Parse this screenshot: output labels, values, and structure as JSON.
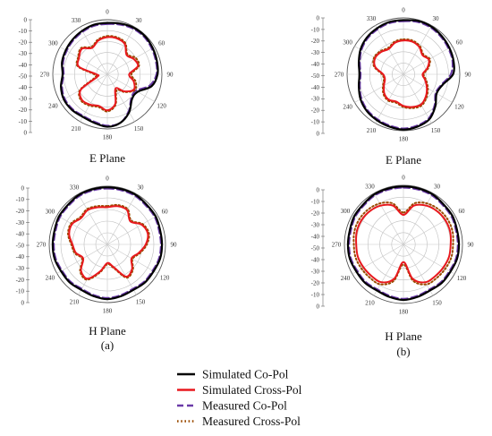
{
  "chart_data": {
    "type": "polar",
    "series_styles": [
      {
        "name": "Simulated Co-Pol",
        "color": "#000000",
        "dash": "solid",
        "width": 2.2
      },
      {
        "name": "Simulated Cross-Pol",
        "color": "#e8191e",
        "dash": "solid",
        "width": 2.0
      },
      {
        "name": "Measured Co-Pol",
        "color": "#6a3aa8",
        "dash": "dashed",
        "width": 2.0
      },
      {
        "name": "Measured Cross-Pol",
        "color": "#9a4a00",
        "dash": "dotted",
        "width": 2.0
      }
    ],
    "angle_ticks": [
      "0",
      "30",
      "60",
      "90",
      "120",
      "150",
      "180",
      "210",
      "240",
      "270",
      "300",
      "330"
    ],
    "radial_ticks": [
      "0",
      "-10",
      "-20",
      "-30",
      "-40",
      "-50",
      "-40",
      "-30",
      "-20",
      "-10",
      "0"
    ],
    "rlim": [
      -50,
      0
    ],
    "angle_step_deg": 30,
    "panels": [
      {
        "plane": "E Plane",
        "label": "",
        "series": {
          "Simulated Co-Pol": [
            -3,
            -2,
            -1,
            -1,
            -2,
            -3,
            -4,
            -8,
            -18,
            -18,
            -10,
            -4,
            -2,
            -4,
            -5,
            -4,
            -4,
            -6,
            -9,
            -7,
            -6,
            -5,
            -4,
            -3
          ],
          "Measured Co-Pol": [
            -4,
            -3,
            -2,
            -2,
            -3,
            -4,
            -5,
            -10,
            -20,
            -19,
            -11,
            -4,
            -3,
            -5,
            -6,
            -5,
            -5,
            -7,
            -10,
            -8,
            -7,
            -6,
            -5,
            -4
          ],
          "Simulated Cross-Pol": [
            -16,
            -16,
            -18,
            -25,
            -22,
            -21,
            -30,
            -25,
            -22,
            -28,
            -35,
            -22,
            -17,
            -20,
            -18,
            -17,
            -22,
            -40,
            -40,
            -23,
            -20,
            -17,
            -22,
            -18
          ],
          "Measured Cross-Pol": [
            -15,
            -15,
            -17,
            -24,
            -20,
            -20,
            -28,
            -23,
            -21,
            -27,
            -33,
            -21,
            -16,
            -19,
            -17,
            -16,
            -21,
            -38,
            -38,
            -22,
            -19,
            -16,
            -21,
            -17
          ]
        }
      },
      {
        "plane": "E Plane",
        "label": "",
        "series": {
          "Simulated Co-Pol": [
            -2,
            -1,
            -1,
            -2,
            -3,
            -4,
            -6,
            -14,
            -16,
            -10,
            -4,
            -2,
            -1,
            -2,
            -3,
            -4,
            -6,
            -9,
            -11,
            -9,
            -6,
            -4,
            -3,
            -2
          ],
          "Measured Co-Pol": [
            -3,
            -2,
            -2,
            -3,
            -4,
            -5,
            -8,
            -15,
            -17,
            -11,
            -5,
            -3,
            -2,
            -3,
            -4,
            -5,
            -7,
            -10,
            -12,
            -10,
            -7,
            -5,
            -4,
            -3
          ],
          "Simulated Cross-Pol": [
            -20,
            -20,
            -22,
            -26,
            -24,
            -28,
            -33,
            -30,
            -26,
            -22,
            -19,
            -20,
            -22,
            -25,
            -24,
            -26,
            -30,
            -33,
            -32,
            -24,
            -21,
            -22,
            -24,
            -21
          ],
          "Measured Cross-Pol": [
            -19,
            -19,
            -21,
            -25,
            -23,
            -27,
            -32,
            -29,
            -25,
            -21,
            -18,
            -19,
            -21,
            -24,
            -23,
            -25,
            -29,
            -32,
            -31,
            -23,
            -20,
            -21,
            -23,
            -20
          ]
        }
      },
      {
        "plane": "H Plane",
        "label": "(a)",
        "series": {
          "Simulated Co-Pol": [
            -1,
            -1,
            -1,
            -2,
            -2,
            -3,
            -3,
            -3,
            -4,
            -4,
            -5,
            -4,
            -3,
            -4,
            -5,
            -4,
            -4,
            -3,
            -3,
            -3,
            -2,
            -2,
            -1,
            -1
          ],
          "Measured Co-Pol": [
            -2,
            -2,
            -2,
            -3,
            -3,
            -4,
            -4,
            -4,
            -5,
            -5,
            -6,
            -5,
            -4,
            -5,
            -6,
            -5,
            -5,
            -4,
            -4,
            -4,
            -3,
            -3,
            -2,
            -2
          ],
          "Simulated Cross-Pol": [
            -18,
            -16,
            -16,
            -22,
            -16,
            -14,
            -17,
            -22,
            -26,
            -20,
            -18,
            -30,
            -34,
            -26,
            -16,
            -18,
            -26,
            -22,
            -20,
            -16,
            -15,
            -18,
            -16,
            -17
          ],
          "Measured Cross-Pol": [
            -17,
            -15,
            -15,
            -21,
            -15,
            -13,
            -16,
            -21,
            -25,
            -19,
            -17,
            -29,
            -33,
            -25,
            -15,
            -17,
            -25,
            -21,
            -19,
            -15,
            -14,
            -17,
            -15,
            -16
          ]
        }
      },
      {
        "plane": "H Plane",
        "label": "(b)",
        "series": {
          "Simulated Co-Pol": [
            -1,
            -1,
            -1,
            -2,
            -2,
            -3,
            -3,
            -3,
            -4,
            -4,
            -5,
            -4,
            -3,
            -4,
            -5,
            -4,
            -4,
            -3,
            -3,
            -3,
            -2,
            -2,
            -1,
            -1
          ],
          "Measured Co-Pol": [
            -2,
            -2,
            -2,
            -3,
            -3,
            -4,
            -4,
            -4,
            -5,
            -5,
            -6,
            -5,
            -4,
            -5,
            -6,
            -5,
            -5,
            -4,
            -4,
            -4,
            -3,
            -3,
            -2,
            -2
          ],
          "Simulated Cross-Pol": [
            -25,
            -16,
            -12,
            -10,
            -9,
            -9,
            -10,
            -10,
            -11,
            -12,
            -13,
            -20,
            -35,
            -20,
            -13,
            -12,
            -11,
            -10,
            -10,
            -9,
            -9,
            -10,
            -12,
            -16
          ],
          "Measured Cross-Pol": [
            -23,
            -14,
            -10,
            -8,
            -7,
            -7,
            -8,
            -8,
            -9,
            -10,
            -11,
            -18,
            -33,
            -18,
            -11,
            -10,
            -9,
            -8,
            -8,
            -7,
            -7,
            -8,
            -10,
            -14
          ]
        }
      }
    ],
    "legend": {
      "placement": "bottom-center",
      "entries": [
        "Simulated Co-Pol",
        "Simulated Cross-Pol",
        "Measured Co-Pol",
        "Measured Cross-Pol"
      ]
    }
  }
}
